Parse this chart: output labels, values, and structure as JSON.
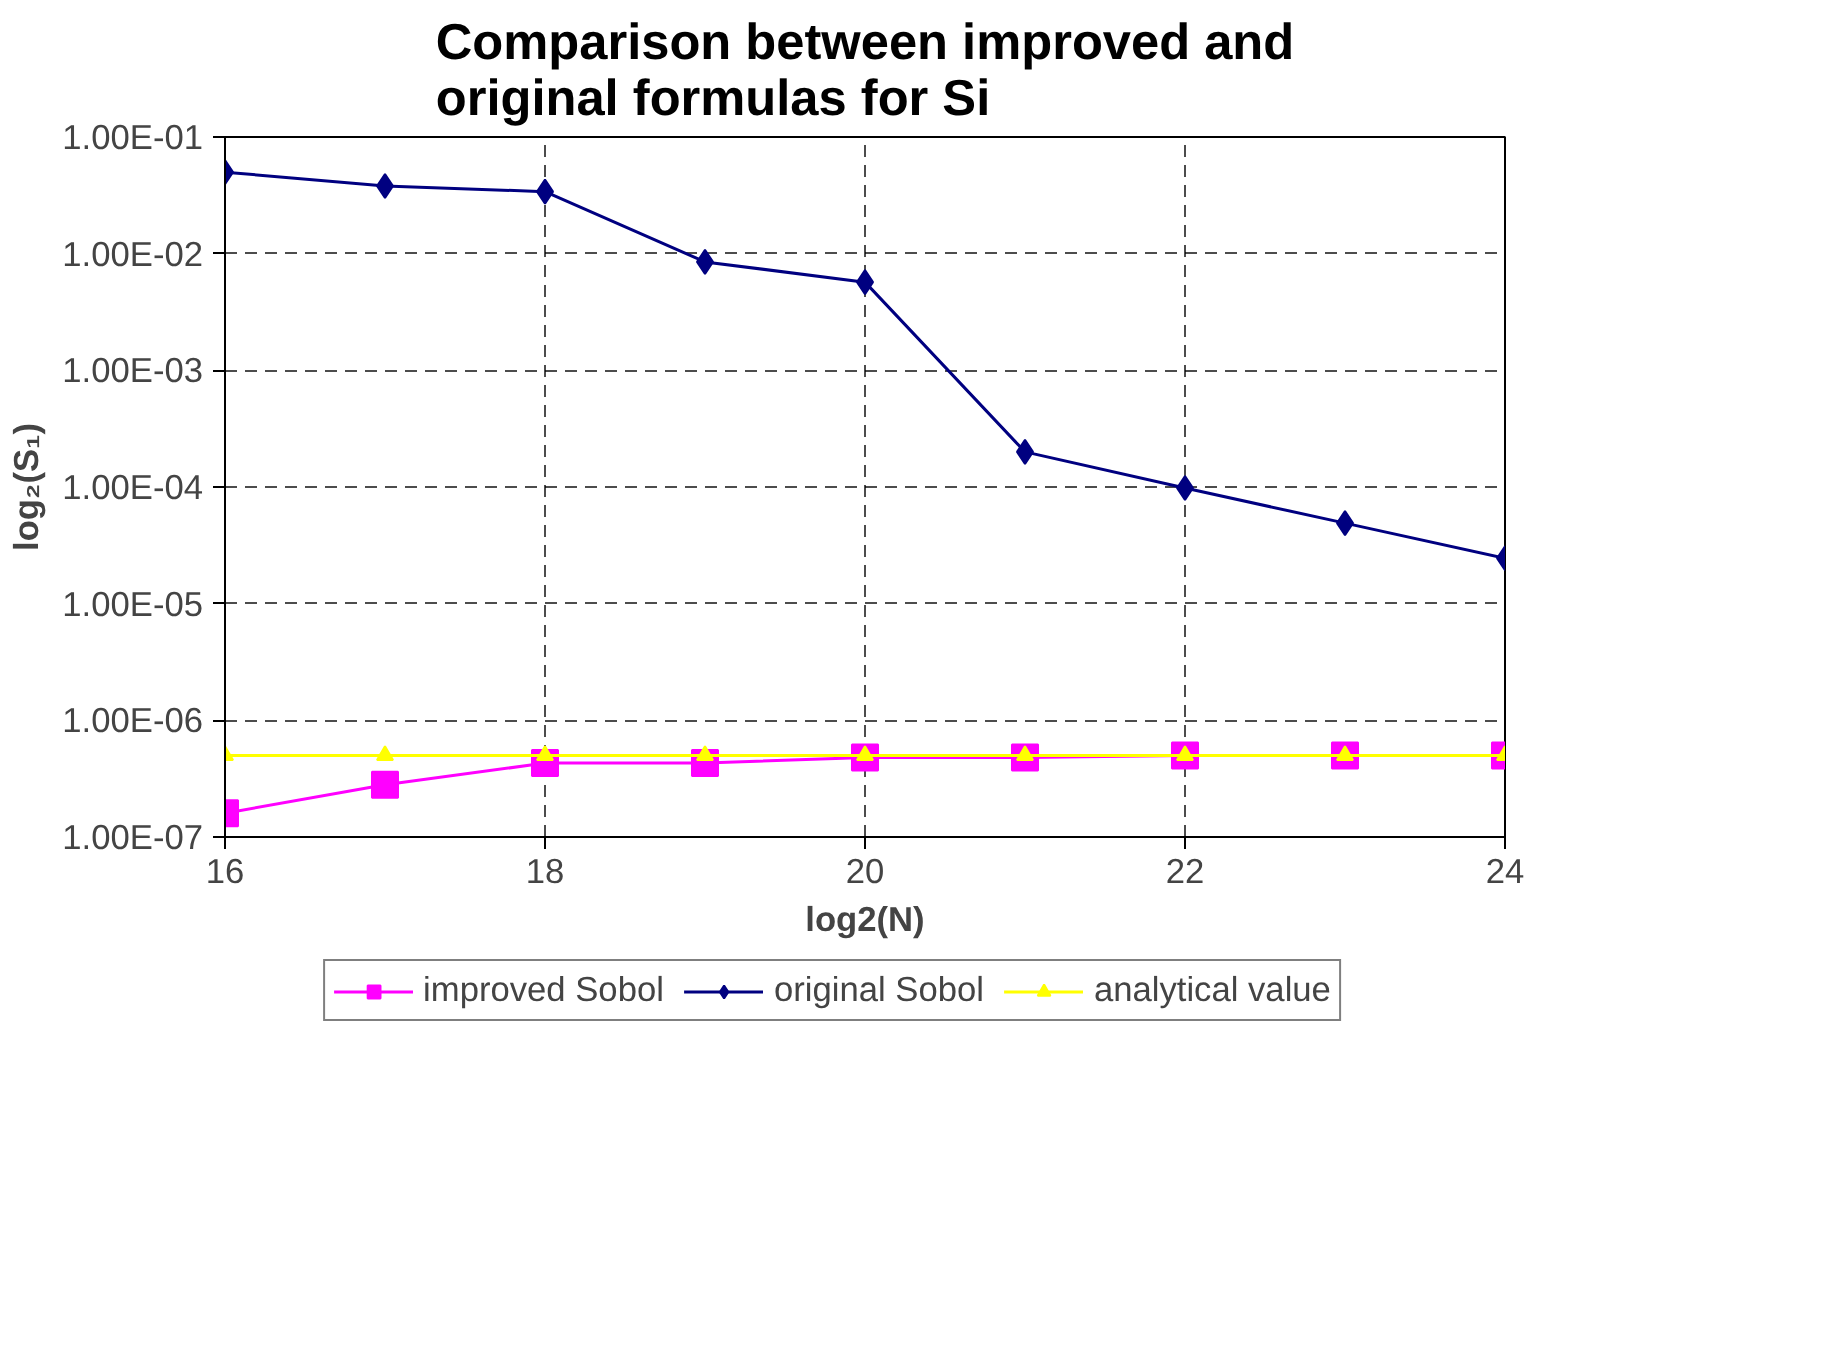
{
  "chart_data": {
    "type": "line",
    "title": "Comparison between improved and original formulas for Si",
    "xlabel": "log2(N)",
    "ylabel": "log₂(S₁)",
    "x": [
      16,
      17,
      18,
      19,
      20,
      21,
      22,
      23,
      24
    ],
    "series": [
      {
        "name": "improved Sobol",
        "color": "#ff00ff",
        "marker": "square",
        "values": [
          1.6e-07,
          2.8e-07,
          4.3e-07,
          4.3e-07,
          4.8e-07,
          4.8e-07,
          5e-07,
          5e-07,
          5e-07
        ]
      },
      {
        "name": "original Sobol",
        "color": "#000080",
        "marker": "diamond",
        "values": [
          0.05,
          0.038,
          0.034,
          0.0085,
          0.0057,
          0.0002,
          9.8e-05,
          4.9e-05,
          2.45e-05
        ]
      },
      {
        "name": "analytical value",
        "color": "#ffff00",
        "marker": "triangle",
        "values": [
          5e-07,
          5e-07,
          5e-07,
          5e-07,
          5e-07,
          5e-07,
          5e-07,
          5e-07,
          5e-07
        ]
      }
    ],
    "log": "y",
    "xlim": [
      16,
      24
    ],
    "xticks": [
      16,
      18,
      20,
      22,
      24
    ],
    "ylim": [
      1e-07,
      0.1
    ],
    "yticks": [
      {
        "value": 1e-07,
        "label": "1.00E-07"
      },
      {
        "value": 1e-06,
        "label": "1.00E-06"
      },
      {
        "value": 1e-05,
        "label": "1.00E-05"
      },
      {
        "value": 0.0001,
        "label": "1.00E-04"
      },
      {
        "value": 0.001,
        "label": "1.00E-03"
      },
      {
        "value": 0.01,
        "label": "1.00E-02"
      },
      {
        "value": 0.1,
        "label": "1.00E-01"
      }
    ],
    "grid": true,
    "legend": "bottom",
    "line_style": "solid"
  }
}
